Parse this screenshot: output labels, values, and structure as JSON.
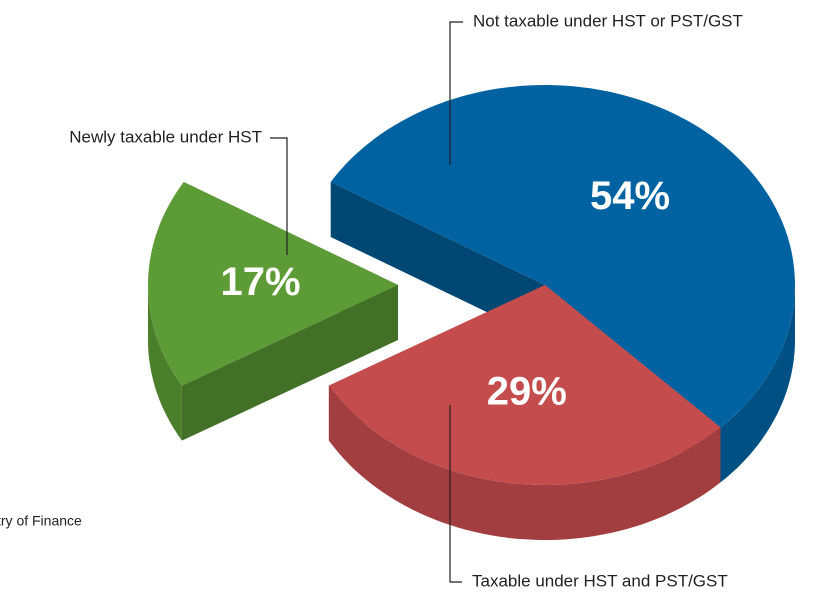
{
  "chart_data": {
    "type": "pie",
    "categories": [
      "Not taxable under HST or PST/GST",
      "Taxable under HST and PST/GST",
      "Newly taxable under HST"
    ],
    "values": [
      54,
      29,
      17
    ],
    "value_labels": [
      "54%",
      "29%",
      "17%"
    ],
    "colors": [
      "#0062a1",
      "#c54c4d",
      "#5d9b36"
    ],
    "source": "try of Finance"
  }
}
